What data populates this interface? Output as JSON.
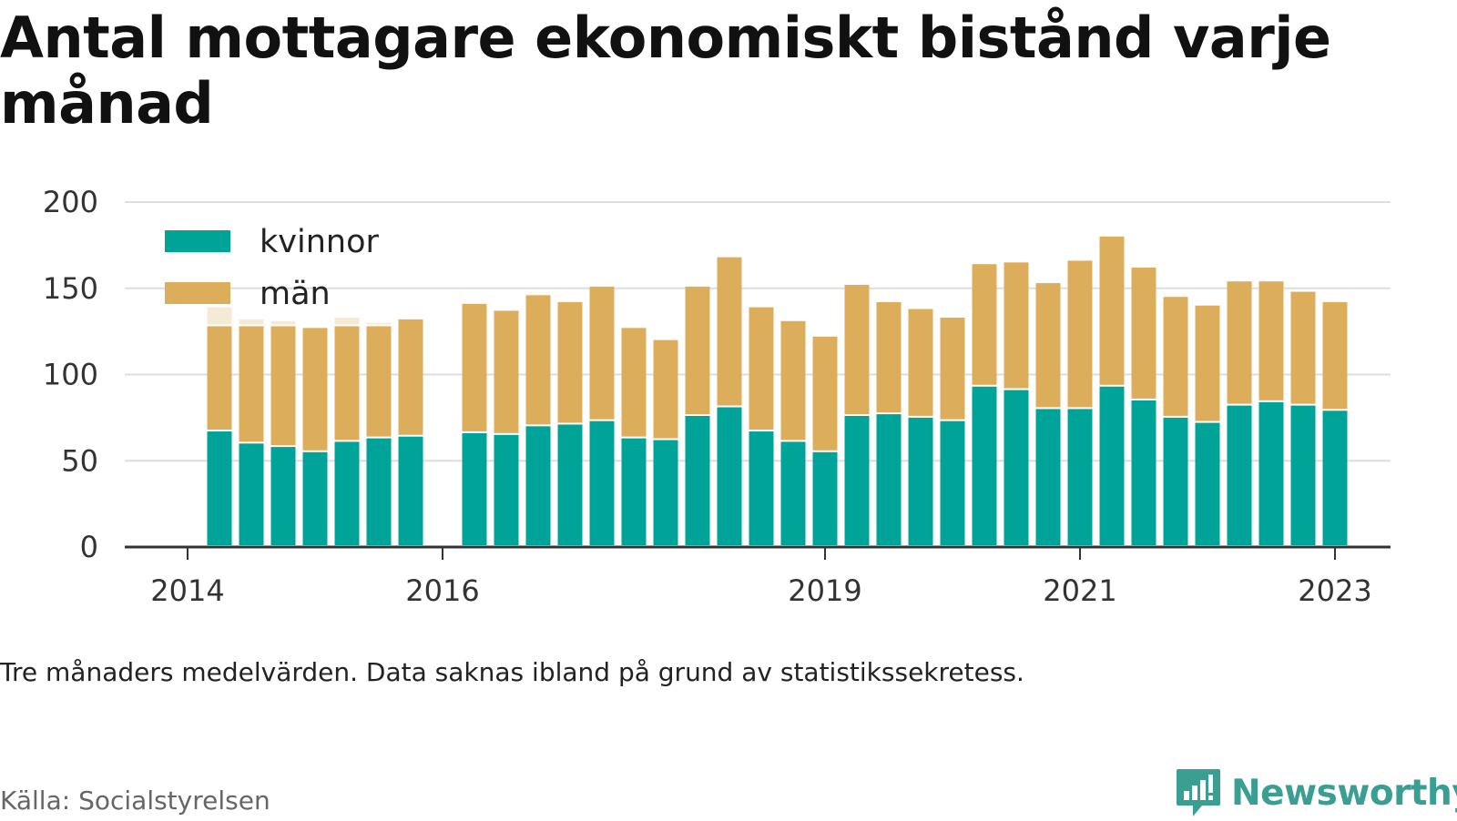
{
  "title": "Antal mottagare ekonomiskt bistånd varje månad",
  "note": "Tre månaders medelvärden. Data saknas ibland på grund av statistikssekretess.",
  "source": "Källa: Socialstyrelsen",
  "brand": {
    "name": "Newsworthy",
    "icon": "newsworthy-logo-icon",
    "color": "#3a9e91"
  },
  "chart_data": {
    "type": "bar",
    "stacked": true,
    "title": "Antal mottagare ekonomiskt bistånd varje månad",
    "ylim": [
      0,
      200
    ],
    "yticks": [
      0,
      50,
      100,
      150,
      200
    ],
    "xticks": [
      {
        "label": "2014",
        "x": 2014.0
      },
      {
        "label": "2016",
        "x": 2016.0
      },
      {
        "label": "2019",
        "x": 2019.0
      },
      {
        "label": "2021",
        "x": 2021.0
      },
      {
        "label": "2023",
        "x": 2023.0
      }
    ],
    "grid": true,
    "legend_position": "top-left",
    "x": [
      2014.25,
      2014.5,
      2014.75,
      2015.0,
      2015.25,
      2015.5,
      2015.75,
      2016.25,
      2016.5,
      2016.75,
      2017.0,
      2017.25,
      2017.5,
      2017.75,
      2018.0,
      2018.25,
      2018.5,
      2018.75,
      2019.0,
      2019.25,
      2019.5,
      2019.75,
      2020.0,
      2020.25,
      2020.5,
      2020.75,
      2021.0,
      2021.25,
      2021.5,
      2021.75,
      2022.0,
      2022.25,
      2022.5,
      2022.75,
      2023.0
    ],
    "series": [
      {
        "name": "kvinnor",
        "color": "#00a398",
        "values": [
          67,
          60,
          58,
          55,
          61,
          63,
          64,
          66,
          65,
          70,
          71,
          73,
          63,
          62,
          76,
          81,
          67,
          61,
          55,
          76,
          77,
          75,
          73,
          93,
          91,
          80,
          80,
          93,
          85,
          75,
          72,
          82,
          84,
          82,
          79
        ]
      },
      {
        "name": "män",
        "color": "#dcae5c",
        "values": [
          61,
          68,
          70,
          72,
          67,
          65,
          68,
          75,
          72,
          76,
          71,
          78,
          64,
          58,
          75,
          87,
          72,
          70,
          67,
          76,
          65,
          63,
          60,
          71,
          74,
          73,
          86,
          87,
          77,
          70,
          68,
          72,
          70,
          66,
          63
        ]
      },
      {
        "name": "",
        "color": "#f5ead6",
        "values": [
          11,
          4,
          3,
          0,
          5,
          2,
          0,
          0,
          0,
          0,
          0,
          0,
          0,
          0,
          0,
          0,
          0,
          0,
          0,
          0,
          0,
          0,
          0,
          0,
          0,
          0,
          0,
          0,
          0,
          0,
          0,
          0,
          0,
          0,
          0
        ]
      }
    ]
  }
}
